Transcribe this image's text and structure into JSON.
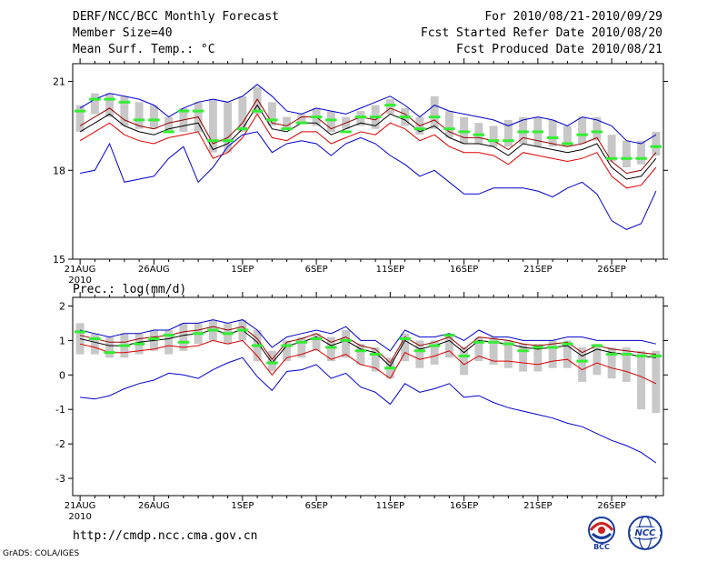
{
  "header": {
    "title": "DERF/NCC/BCC Monthly Forecast",
    "member_size": "Member Size=40",
    "variable": "Mean Surf. Temp.: °C",
    "forecast_period": "For 2010/08/21-2010/09/29",
    "started_date": "Fcst Started Refer Date 2010/08/20",
    "produced_date": "Fcst Produced Date 2010/08/21"
  },
  "footer": {
    "url": "http://cmdp.ncc.cma.gov.cn",
    "grads": "GrADS: COLA/IGES",
    "logo_bcc": "BCC",
    "logo_ncc": "NCC"
  },
  "colors": {
    "ensemble_box": "#c8c8c8",
    "ensemble_mean": "#000000",
    "upper_lower_bound": "#0000cc",
    "lower_quantile": "#cc0000",
    "observed_mark": "#33ee33"
  },
  "chart_data": [
    {
      "type": "line",
      "title": "Mean Surf. Temp.: °C",
      "x_labels": [
        "21AUG",
        "26AUG",
        "1SEP",
        "6SEP",
        "11SEP",
        "16SEP",
        "21SEP",
        "26SEP"
      ],
      "x_label_days": [
        1,
        6,
        12,
        17,
        22,
        27,
        32,
        37
      ],
      "year_label": "2010",
      "xlim": [
        0.5,
        40.5
      ],
      "ylim": [
        15,
        21.6
      ],
      "y_ticks": [
        15,
        18,
        21
      ],
      "days": 40,
      "series": [
        {
          "name": "Ensemble max",
          "color": "blue",
          "values": [
            20.1,
            20.4,
            20.6,
            20.5,
            20.4,
            20.2,
            19.8,
            20.1,
            20.3,
            20.4,
            20.3,
            20.5,
            20.9,
            20.5,
            20.0,
            19.9,
            20.1,
            20.0,
            19.9,
            20.1,
            20.3,
            20.5,
            20.2,
            19.8,
            20.2,
            20.0,
            19.9,
            19.8,
            19.7,
            19.5,
            19.7,
            19.8,
            19.7,
            19.5,
            19.8,
            19.7,
            19.5,
            19.0,
            18.9,
            19.2
          ]
        },
        {
          "name": "Ensemble mean",
          "color": "black",
          "values": [
            19.3,
            19.6,
            19.9,
            19.5,
            19.3,
            19.2,
            19.4,
            19.5,
            19.6,
            18.7,
            18.9,
            19.4,
            20.2,
            19.4,
            19.3,
            19.6,
            19.6,
            19.2,
            19.4,
            19.6,
            19.5,
            19.9,
            19.7,
            19.3,
            19.5,
            19.1,
            18.9,
            18.9,
            18.8,
            18.5,
            18.9,
            18.8,
            18.7,
            18.6,
            18.7,
            18.9,
            18.1,
            17.7,
            17.8,
            18.4
          ]
        },
        {
          "name": "Upper quantile",
          "color": "darkred",
          "values": [
            19.5,
            19.8,
            20.1,
            19.7,
            19.5,
            19.4,
            19.6,
            19.7,
            19.8,
            18.9,
            19.1,
            19.6,
            20.4,
            19.6,
            19.5,
            19.8,
            19.8,
            19.4,
            19.6,
            19.8,
            19.7,
            20.1,
            19.9,
            19.5,
            19.7,
            19.3,
            19.1,
            19.1,
            19.0,
            18.7,
            19.1,
            19.0,
            18.9,
            18.8,
            18.9,
            19.1,
            18.3,
            17.9,
            18.0,
            18.6
          ]
        },
        {
          "name": "Lower quantile",
          "color": "red",
          "values": [
            19.0,
            19.3,
            19.6,
            19.2,
            19.0,
            18.9,
            19.1,
            19.2,
            19.3,
            18.4,
            18.6,
            19.1,
            19.9,
            19.1,
            19.0,
            19.3,
            19.3,
            18.9,
            19.1,
            19.3,
            19.2,
            19.6,
            19.4,
            19.0,
            19.2,
            18.8,
            18.6,
            18.6,
            18.5,
            18.2,
            18.6,
            18.5,
            18.4,
            18.3,
            18.4,
            18.6,
            17.8,
            17.4,
            17.5,
            18.1
          ]
        },
        {
          "name": "Ensemble min",
          "color": "blue",
          "values": [
            17.9,
            18.0,
            18.9,
            17.6,
            17.7,
            17.8,
            18.4,
            18.8,
            17.6,
            18.1,
            18.8,
            19.2,
            19.3,
            18.6,
            18.9,
            19.0,
            18.9,
            18.5,
            18.9,
            19.1,
            18.9,
            18.5,
            18.2,
            17.8,
            18.0,
            17.6,
            17.2,
            17.2,
            17.4,
            17.4,
            17.4,
            17.3,
            17.1,
            17.4,
            17.6,
            17.2,
            16.3,
            16.0,
            16.2,
            17.3
          ]
        }
      ],
      "box_low": [
        19.3,
        19.9,
        19.8,
        19.5,
        19.4,
        19.4,
        19.3,
        19.3,
        19.3,
        18.6,
        18.6,
        19.3,
        19.9,
        19.5,
        19.4,
        19.6,
        19.5,
        19.3,
        19.4,
        19.5,
        19.4,
        19.9,
        19.5,
        19.2,
        19.4,
        19.1,
        18.9,
        18.9,
        18.8,
        18.8,
        18.9,
        18.8,
        18.8,
        18.8,
        18.9,
        19.0,
        18.3,
        18.1,
        18.2,
        18.5
      ],
      "box_high": [
        20.2,
        20.6,
        20.6,
        20.5,
        20.3,
        20.2,
        19.8,
        20.1,
        20.3,
        20.4,
        20.3,
        20.5,
        20.8,
        20.3,
        19.8,
        19.9,
        20.1,
        20.0,
        19.8,
        20.0,
        20.2,
        20.4,
        20.1,
        19.8,
        20.5,
        20.0,
        19.8,
        19.6,
        19.5,
        19.7,
        19.8,
        19.8,
        19.7,
        19.5,
        19.8,
        19.8,
        19.2,
        19.0,
        19.0,
        19.3
      ],
      "observed": [
        20.0,
        20.4,
        20.4,
        20.3,
        19.7,
        19.7,
        19.3,
        20.0,
        20.0,
        19.0,
        19.0,
        19.4,
        20.0,
        19.7,
        19.4,
        19.6,
        19.8,
        19.7,
        19.3,
        19.8,
        19.8,
        20.2,
        19.8,
        19.4,
        19.8,
        19.4,
        19.3,
        19.2,
        19.0,
        19.0,
        19.3,
        19.3,
        19.1,
        18.9,
        19.2,
        19.3,
        18.4,
        18.4,
        18.4,
        18.8
      ]
    },
    {
      "type": "line",
      "title": "Prec.: log(mm/d)",
      "x_labels": [
        "21AUG",
        "26AUG",
        "1SEP",
        "6SEP",
        "11SEP",
        "16SEP",
        "21SEP",
        "26SEP"
      ],
      "x_label_days": [
        1,
        6,
        12,
        17,
        22,
        27,
        32,
        37
      ],
      "year_label": "2010",
      "xlim": [
        0.5,
        40.5
      ],
      "ylim": [
        -3.5,
        2.25
      ],
      "y_ticks": [
        -3,
        -2,
        -1,
        0,
        1,
        2
      ],
      "days": 40,
      "series": [
        {
          "name": "Ensemble max",
          "color": "blue",
          "values": [
            1.3,
            1.2,
            1.1,
            1.2,
            1.2,
            1.3,
            1.3,
            1.5,
            1.5,
            1.6,
            1.5,
            1.6,
            1.3,
            0.8,
            1.1,
            1.2,
            1.3,
            1.2,
            1.4,
            1.0,
            1.0,
            0.7,
            1.3,
            1.1,
            1.1,
            1.2,
            1.0,
            1.3,
            1.1,
            1.1,
            1.0,
            1.0,
            1.0,
            1.1,
            1.1,
            1.0,
            1.0,
            1.0,
            1.0,
            0.9
          ]
        },
        {
          "name": "Ensemble mean",
          "color": "black",
          "values": [
            1.05,
            0.95,
            0.85,
            0.85,
            0.95,
            1.0,
            1.05,
            1.15,
            1.2,
            1.3,
            1.2,
            1.3,
            0.95,
            0.35,
            0.85,
            0.95,
            1.1,
            0.85,
            1.0,
            0.75,
            0.65,
            0.25,
            1.0,
            0.75,
            0.85,
            1.0,
            0.65,
            1.0,
            0.95,
            0.9,
            0.8,
            0.75,
            0.8,
            0.85,
            0.55,
            0.75,
            0.65,
            0.6,
            0.55,
            0.5
          ]
        },
        {
          "name": "Upper quantile",
          "color": "darkred",
          "values": [
            1.15,
            1.05,
            0.95,
            0.95,
            1.05,
            1.1,
            1.15,
            1.25,
            1.3,
            1.4,
            1.3,
            1.4,
            1.05,
            0.45,
            0.95,
            1.05,
            1.2,
            0.95,
            1.1,
            0.85,
            0.75,
            0.35,
            1.1,
            0.85,
            0.95,
            1.1,
            0.75,
            1.1,
            1.05,
            1.0,
            0.9,
            0.85,
            0.9,
            0.95,
            0.65,
            0.85,
            0.75,
            0.7,
            0.65,
            0.6
          ]
        },
        {
          "name": "Lower quantile",
          "color": "red",
          "values": [
            0.9,
            0.8,
            0.65,
            0.65,
            0.7,
            0.75,
            0.85,
            0.8,
            0.85,
            1.0,
            0.9,
            1.0,
            0.55,
            0.0,
            0.5,
            0.6,
            0.75,
            0.45,
            0.6,
            0.3,
            0.2,
            -0.1,
            0.65,
            0.45,
            0.55,
            0.7,
            0.3,
            0.55,
            0.4,
            0.4,
            0.35,
            0.3,
            0.4,
            0.45,
            0.15,
            0.35,
            0.2,
            0.1,
            -0.05,
            -0.25
          ]
        },
        {
          "name": "Ensemble min",
          "color": "blue",
          "values": [
            -0.65,
            -0.7,
            -0.6,
            -0.4,
            -0.25,
            -0.15,
            0.05,
            0.0,
            -0.1,
            0.15,
            0.35,
            0.5,
            -0.05,
            -0.45,
            0.1,
            0.15,
            0.3,
            -0.1,
            0.05,
            -0.35,
            -0.5,
            -0.85,
            -0.25,
            -0.5,
            -0.4,
            -0.25,
            -0.65,
            -0.6,
            -0.8,
            -0.95,
            -1.05,
            -1.15,
            -1.25,
            -1.4,
            -1.5,
            -1.7,
            -1.9,
            -2.05,
            -2.25,
            -2.55
          ]
        }
      ],
      "box_low": [
        0.6,
        0.6,
        0.5,
        0.5,
        0.6,
        0.7,
        0.6,
        0.7,
        0.9,
        1.0,
        0.9,
        1.0,
        0.4,
        0.1,
        0.4,
        0.5,
        0.7,
        0.4,
        0.5,
        0.3,
        0.1,
        -0.1,
        0.4,
        0.2,
        0.3,
        0.5,
        0.0,
        0.4,
        0.3,
        0.2,
        0.1,
        0.1,
        0.2,
        0.2,
        -0.2,
        0.0,
        -0.1,
        -0.2,
        -1.0,
        -1.1
      ],
      "box_high": [
        1.5,
        1.2,
        1.1,
        1.2,
        1.2,
        1.3,
        1.3,
        1.5,
        1.5,
        1.6,
        1.5,
        1.6,
        1.3,
        0.7,
        1.0,
        1.1,
        1.2,
        1.1,
        1.3,
        0.9,
        0.8,
        0.5,
        1.2,
        1.0,
        1.0,
        1.2,
        0.8,
        1.1,
        1.1,
        1.0,
        0.9,
        0.9,
        1.0,
        1.0,
        0.8,
        0.9,
        0.8,
        0.8,
        0.7,
        0.7
      ],
      "observed": [
        1.25,
        1.05,
        0.65,
        0.85,
        0.9,
        1.05,
        1.15,
        0.95,
        1.2,
        1.3,
        1.2,
        1.3,
        0.85,
        0.35,
        0.85,
        0.95,
        1.05,
        0.8,
        1.0,
        0.7,
        0.6,
        0.2,
        1.05,
        0.7,
        0.85,
        1.15,
        0.55,
        0.95,
        0.95,
        0.9,
        0.7,
        0.8,
        0.8,
        0.9,
        0.4,
        0.85,
        0.6,
        0.6,
        0.55,
        0.55
      ]
    }
  ]
}
